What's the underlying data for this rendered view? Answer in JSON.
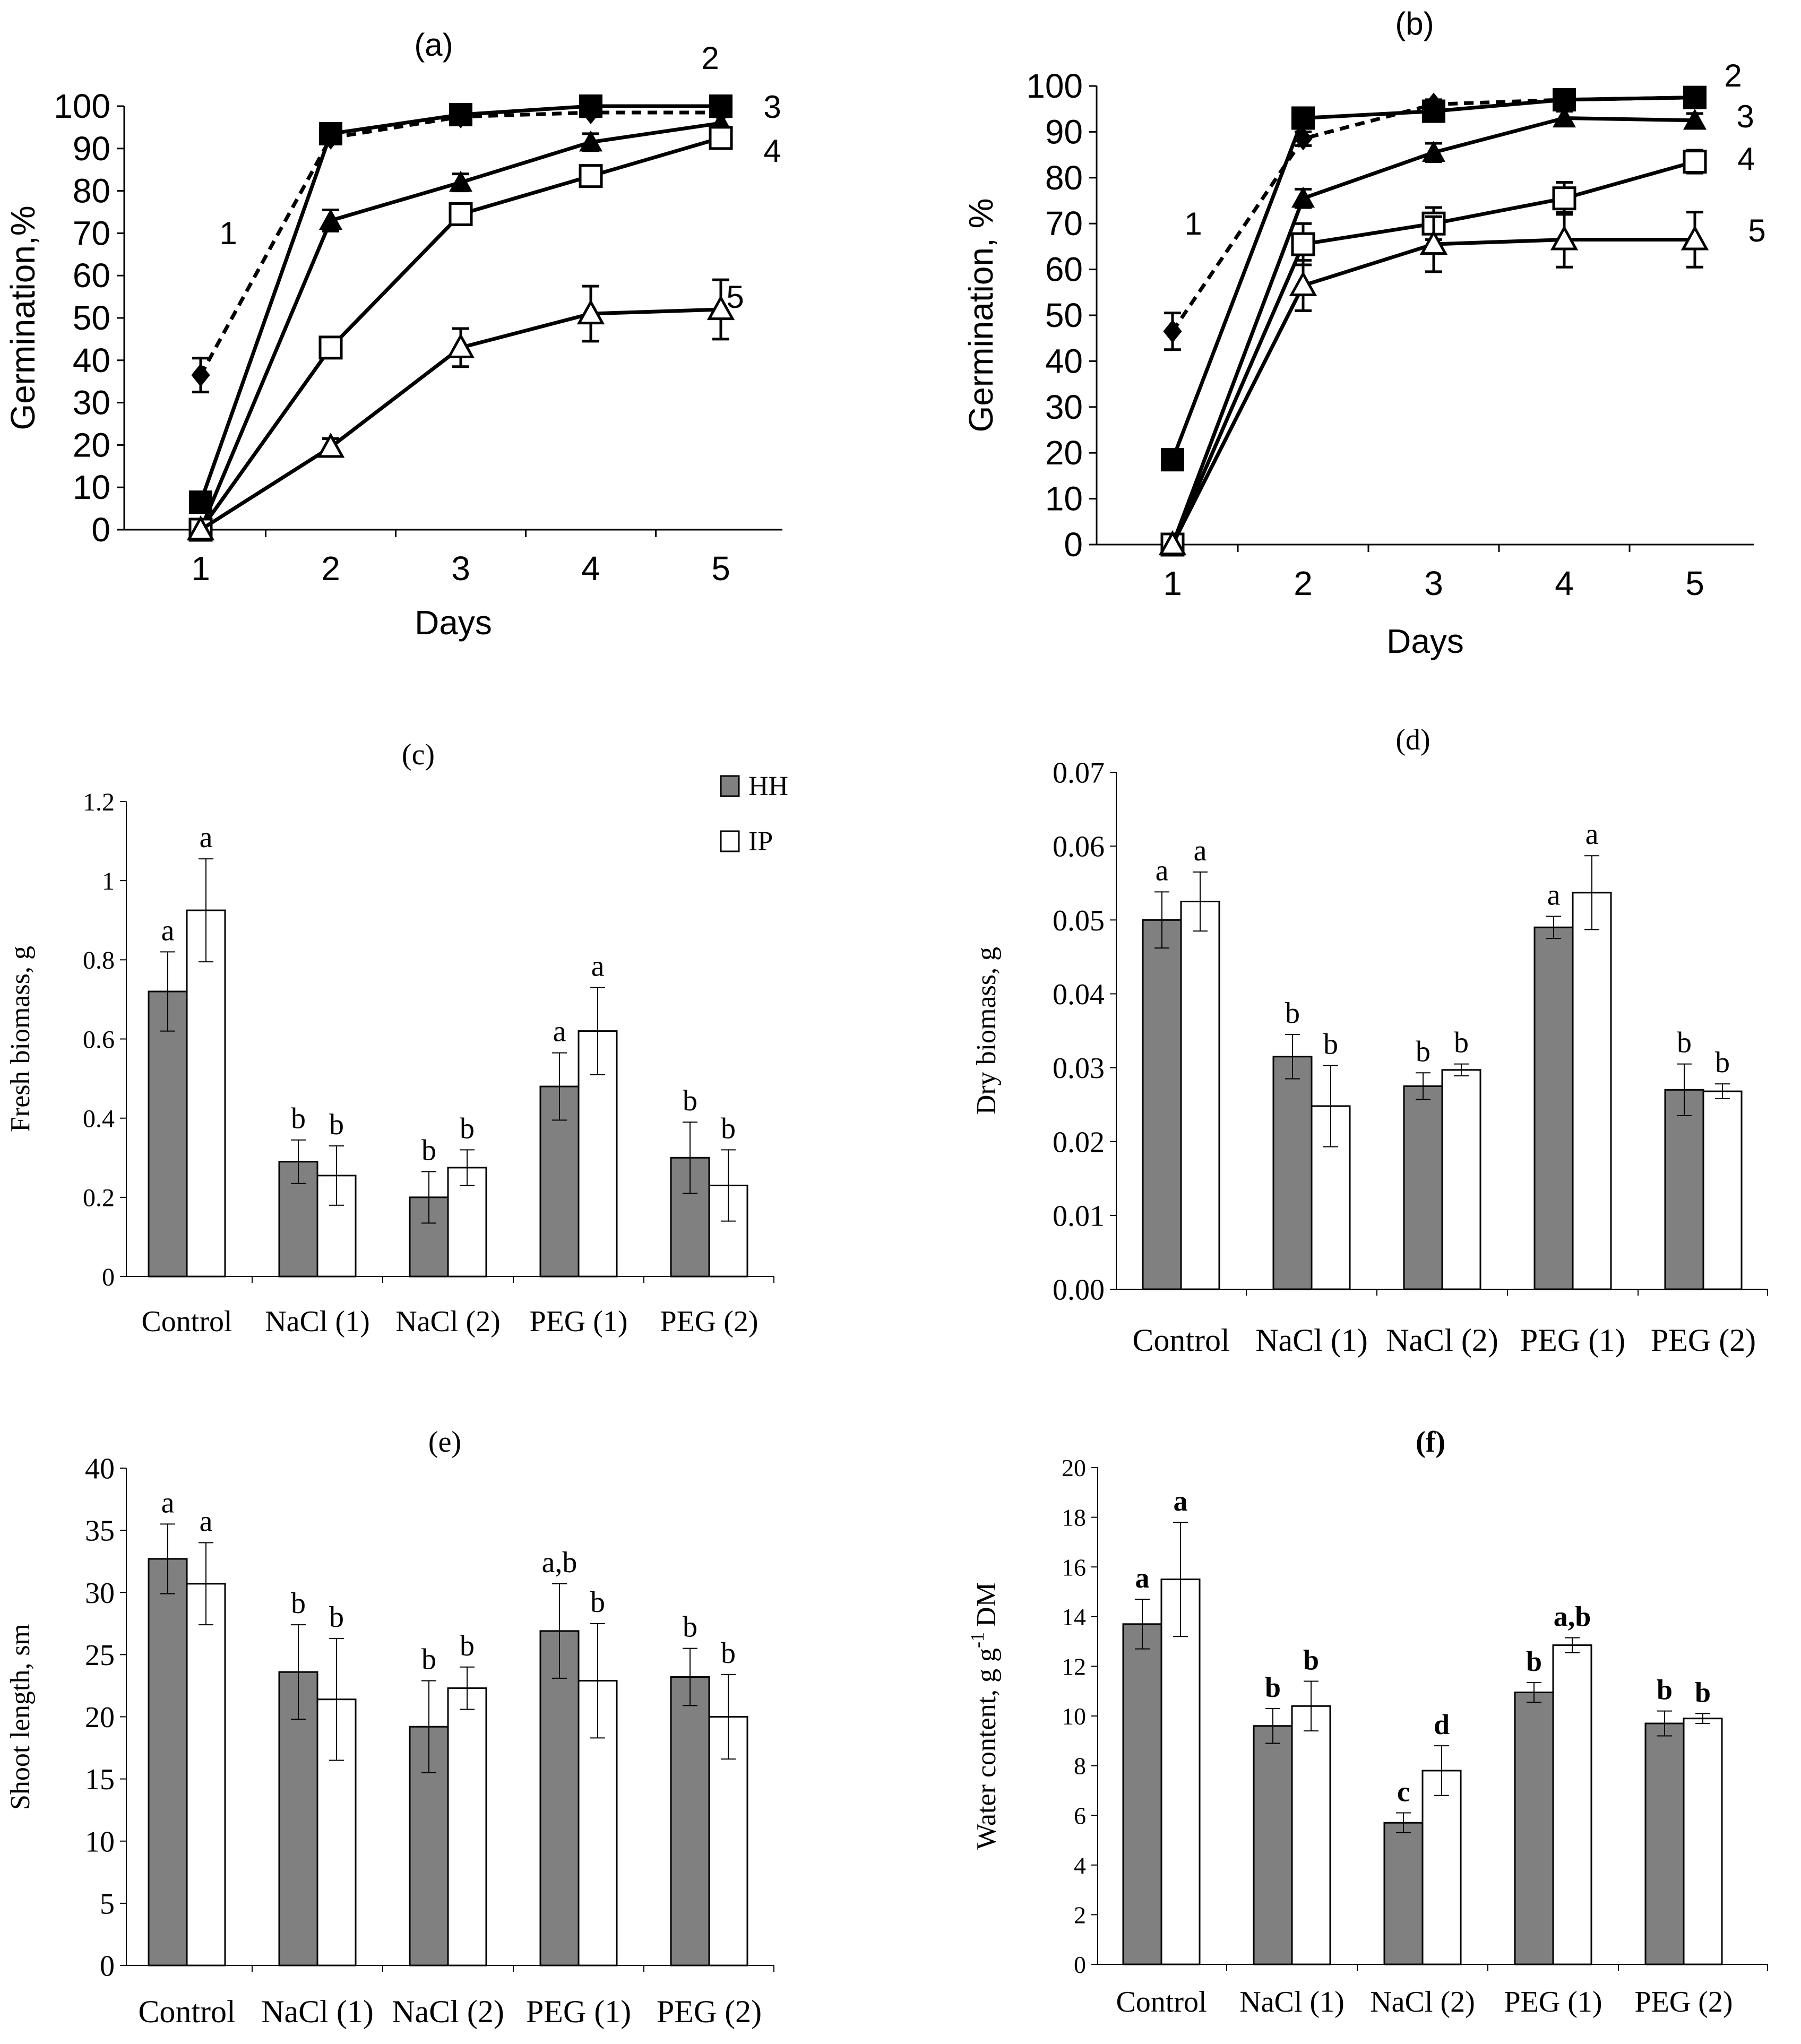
{
  "chart_data": [
    {
      "panel": "(a)",
      "type": "line",
      "title": "(a)",
      "xlabel": "Days",
      "ylabel": "Germination,%",
      "x": [
        1,
        2,
        3,
        4,
        5
      ],
      "xticks": [
        "1",
        "2",
        "3",
        "4",
        "5"
      ],
      "ylim": [
        0,
        100
      ],
      "yticks": [
        "0",
        "10",
        "20",
        "30",
        "40",
        "50",
        "60",
        "70",
        "80",
        "90",
        "100"
      ],
      "series": [
        {
          "name": "1",
          "marker": "diamond",
          "dashed": true,
          "values": [
            36.5,
            92.5,
            97.5,
            98.5,
            98.5
          ],
          "errors": [
            4,
            1,
            1,
            1,
            1
          ]
        },
        {
          "name": "2",
          "marker": "square-filled",
          "dashed": false,
          "values": [
            6.5,
            93.5,
            98,
            100,
            100
          ],
          "errors": [
            1,
            1,
            1,
            1,
            1
          ]
        },
        {
          "name": "3",
          "marker": "triangle-filled",
          "dashed": false,
          "values": [
            0,
            73,
            82,
            91.5,
            96
          ],
          "errors": [
            0,
            2.5,
            2,
            2,
            1.5
          ]
        },
        {
          "name": "4",
          "marker": "square-open",
          "dashed": false,
          "values": [
            0,
            43,
            74.5,
            83.5,
            92.5
          ],
          "errors": [
            0,
            2,
            2,
            2,
            2
          ]
        },
        {
          "name": "5",
          "marker": "triangle-open",
          "dashed": false,
          "values": [
            0,
            19.5,
            43,
            51,
            52
          ],
          "errors": [
            0,
            2,
            4.5,
            6.5,
            7
          ]
        }
      ]
    },
    {
      "panel": "(b)",
      "type": "line",
      "title": "(b)",
      "xlabel": "Days",
      "ylabel": "Germination, %",
      "x": [
        1,
        2,
        3,
        4,
        5
      ],
      "xticks": [
        "1",
        "2",
        "3",
        "4",
        "5"
      ],
      "ylim": [
        0,
        100
      ],
      "yticks": [
        "0",
        "10",
        "20",
        "30",
        "40",
        "50",
        "60",
        "70",
        "80",
        "90",
        "100"
      ],
      "series": [
        {
          "name": "1",
          "marker": "diamond",
          "dashed": true,
          "values": [
            46.5,
            88.5,
            96,
            97,
            97.5
          ],
          "errors": [
            4,
            1.5,
            1,
            1,
            1
          ]
        },
        {
          "name": "2",
          "marker": "square-filled",
          "dashed": false,
          "values": [
            18.5,
            93,
            94.5,
            97,
            97.5
          ],
          "errors": [
            1,
            1,
            1,
            1,
            1
          ]
        },
        {
          "name": "3",
          "marker": "triangle-filled",
          "dashed": false,
          "values": [
            0,
            75.5,
            85.5,
            93,
            92.5
          ],
          "errors": [
            0,
            2,
            2,
            1.5,
            1.5
          ]
        },
        {
          "name": "4",
          "marker": "square-open",
          "dashed": false,
          "values": [
            0,
            65.5,
            70,
            75.5,
            83.5
          ],
          "errors": [
            0,
            4.5,
            3.5,
            3.5,
            2.5
          ]
        },
        {
          "name": "5",
          "marker": "triangle-open",
          "dashed": false,
          "values": [
            0,
            56.5,
            65.5,
            66.5,
            66.5
          ],
          "errors": [
            0,
            5.5,
            6,
            6,
            6
          ]
        }
      ]
    },
    {
      "panel": "(c)",
      "type": "bar",
      "title": "(c)",
      "xlabel": "",
      "ylabel": "Fresh biomass, g",
      "categories": [
        "Control",
        "NaCl (1)",
        "NaCl (2)",
        "PEG (1)",
        "PEG (2)"
      ],
      "ylim": [
        0,
        1.2
      ],
      "yticks": [
        "0",
        "0.2",
        "0.4",
        "0.6",
        "0.8",
        "1",
        "1.2"
      ],
      "legend": [
        "HH",
        "IP"
      ],
      "series": [
        {
          "name": "HH",
          "values": [
            0.72,
            0.29,
            0.2,
            0.48,
            0.3
          ],
          "errors": [
            0.1,
            0.055,
            0.065,
            0.085,
            0.09
          ],
          "labels": [
            "a",
            "b",
            "b",
            "a",
            "b"
          ]
        },
        {
          "name": "IP",
          "values": [
            0.925,
            0.255,
            0.275,
            0.62,
            0.23
          ],
          "errors": [
            0.13,
            0.075,
            0.045,
            0.11,
            0.09
          ],
          "labels": [
            "a",
            "b",
            "b",
            "a",
            "b"
          ]
        }
      ]
    },
    {
      "panel": "(d)",
      "type": "bar",
      "title": "(d)",
      "xlabel": "",
      "ylabel": "Dry biomass, g",
      "categories": [
        "Control",
        "NaCl (1)",
        "NaCl (2)",
        "PEG (1)",
        "PEG (2)"
      ],
      "ylim": [
        0,
        0.07
      ],
      "yticks": [
        "0.00",
        "0.01",
        "0.02",
        "0.03",
        "0.04",
        "0.05",
        "0.06",
        "0.07"
      ],
      "series": [
        {
          "name": "HH",
          "values": [
            0.05,
            0.0315,
            0.0275,
            0.049,
            0.027
          ],
          "errors": [
            0.0038,
            0.003,
            0.0018,
            0.0015,
            0.0035
          ],
          "labels": [
            "a",
            "b",
            "b",
            "a",
            "b"
          ]
        },
        {
          "name": "IP",
          "values": [
            0.0525,
            0.0248,
            0.0297,
            0.0537,
            0.0268
          ],
          "errors": [
            0.004,
            0.0055,
            0.0008,
            0.005,
            0.001
          ],
          "labels": [
            "a",
            "b",
            "b",
            "a",
            "b"
          ]
        }
      ]
    },
    {
      "panel": "(e)",
      "type": "bar",
      "title": "(e)",
      "xlabel": "",
      "ylabel": "Shoot length, sm",
      "categories": [
        "Control",
        "NaCl (1)",
        "NaCl (2)",
        "PEG (1)",
        "PEG (2)"
      ],
      "ylim": [
        0,
        40
      ],
      "yticks": [
        "0",
        "5",
        "10",
        "15",
        "20",
        "25",
        "30",
        "35",
        "40"
      ],
      "series": [
        {
          "name": "HH",
          "values": [
            32.7,
            23.6,
            19.2,
            26.9,
            23.2
          ],
          "errors": [
            2.8,
            3.8,
            3.7,
            3.8,
            2.3
          ],
          "labels": [
            "a",
            "b",
            "b",
            "a,b",
            "b"
          ]
        },
        {
          "name": "IP",
          "values": [
            30.7,
            21.4,
            22.3,
            22.9,
            20.0
          ],
          "errors": [
            3.3,
            4.9,
            1.7,
            4.6,
            3.4
          ],
          "labels": [
            "a",
            "b",
            "b",
            "b",
            "b"
          ]
        }
      ]
    },
    {
      "panel": "(f)",
      "type": "bar",
      "title": "(f)",
      "xlabel": "",
      "ylabel": "Water content, g g",
      "ylabel_superscript": "-1",
      "ylabel_suffix": "DM",
      "categories": [
        "Control",
        "NaCl (1)",
        "NaCl (2)",
        "PEG (1)",
        "PEG (2)"
      ],
      "ylim": [
        0,
        20
      ],
      "yticks": [
        "0",
        "2",
        "4",
        "6",
        "8",
        "10",
        "12",
        "14",
        "16",
        "18",
        "20"
      ],
      "series": [
        {
          "name": "HH",
          "values": [
            13.7,
            9.6,
            5.7,
            10.95,
            9.7
          ],
          "errors": [
            1.0,
            0.7,
            0.4,
            0.4,
            0.5
          ],
          "labels": [
            "a",
            "b",
            "c",
            "b",
            "b"
          ]
        },
        {
          "name": "IP",
          "values": [
            15.5,
            10.4,
            7.8,
            12.85,
            9.9
          ],
          "errors": [
            2.3,
            1.0,
            1.0,
            0.3,
            0.2
          ],
          "labels": [
            "a",
            "b",
            "d",
            "a,b",
            "b"
          ]
        }
      ]
    }
  ]
}
